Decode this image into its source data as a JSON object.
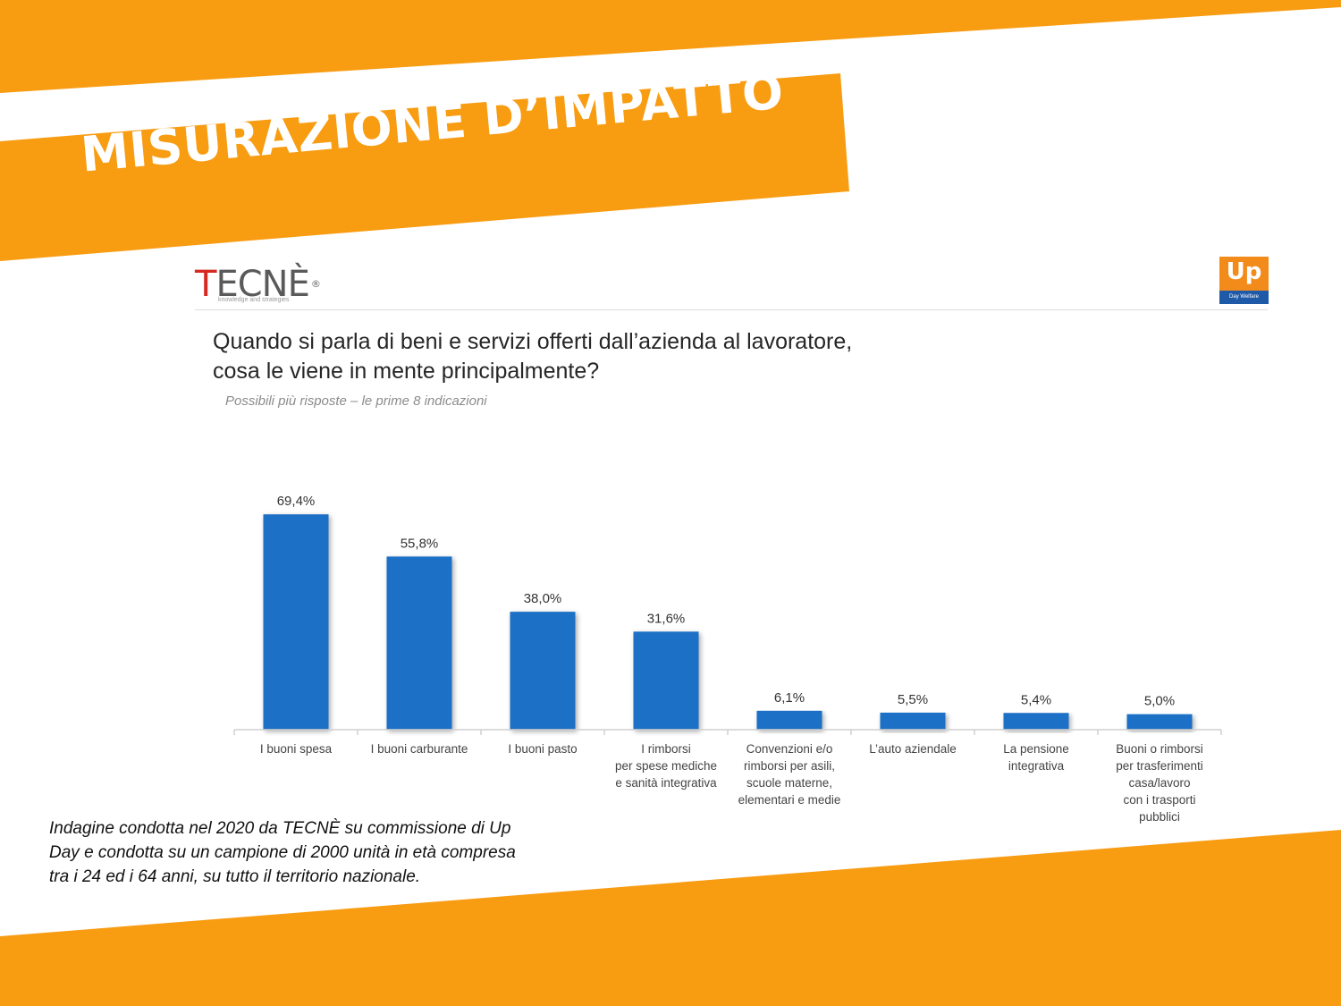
{
  "slide": {
    "title": "MISURAZIONE D’IMPATTO",
    "colors": {
      "accent": "#f89c12",
      "bar": "#1f6fc5"
    }
  },
  "logos": {
    "left_logo_first_letter": "T",
    "left_logo_rest": "ECNÈ",
    "left_logo_registered": "®",
    "left_logo_tagline": "knowledge and strategies",
    "right_logo_text": "Up",
    "right_logo_tagline": "Day Welfare"
  },
  "question": {
    "line1": "Quando si parla di beni e servizi offerti dall’azienda al lavoratore,",
    "line2": "cosa le viene in mente principalmente?",
    "subtitle": "Possibili più risposte – le prime 8 indicazioni"
  },
  "chart_data": {
    "type": "bar",
    "categories": [
      [
        "I buoni spesa"
      ],
      [
        "I buoni carburante"
      ],
      [
        "I buoni pasto"
      ],
      [
        "I rimborsi",
        "per spese mediche",
        "e sanità integrativa"
      ],
      [
        "Convenzioni e/o",
        "rimborsi per asili,",
        "scuole materne,",
        "elementari e medie"
      ],
      [
        "L’auto aziendale"
      ],
      [
        "La pensione",
        "integrativa"
      ],
      [
        "Buoni o rimborsi",
        "per trasferimenti",
        "casa/lavoro",
        "con i trasporti",
        "pubblici"
      ]
    ],
    "values": [
      69.4,
      55.8,
      38.0,
      31.6,
      6.1,
      5.5,
      5.4,
      5.0
    ],
    "data_labels": [
      "69,4%",
      "55,8%",
      "38,0%",
      "31,6%",
      "6,1%",
      "5,5%",
      "5,4%",
      "5,0%"
    ],
    "ylim": [
      0,
      100
    ],
    "grid": false,
    "legend": "none"
  },
  "footnote": {
    "line1": "Indagine condotta nel 2020 da TECNÈ  su commissione di Up",
    "line2": "Day e condotta su un campione di 2000 unità in età compresa",
    "line3": "tra i 24 ed i 64 anni, su tutto il territorio nazionale."
  }
}
